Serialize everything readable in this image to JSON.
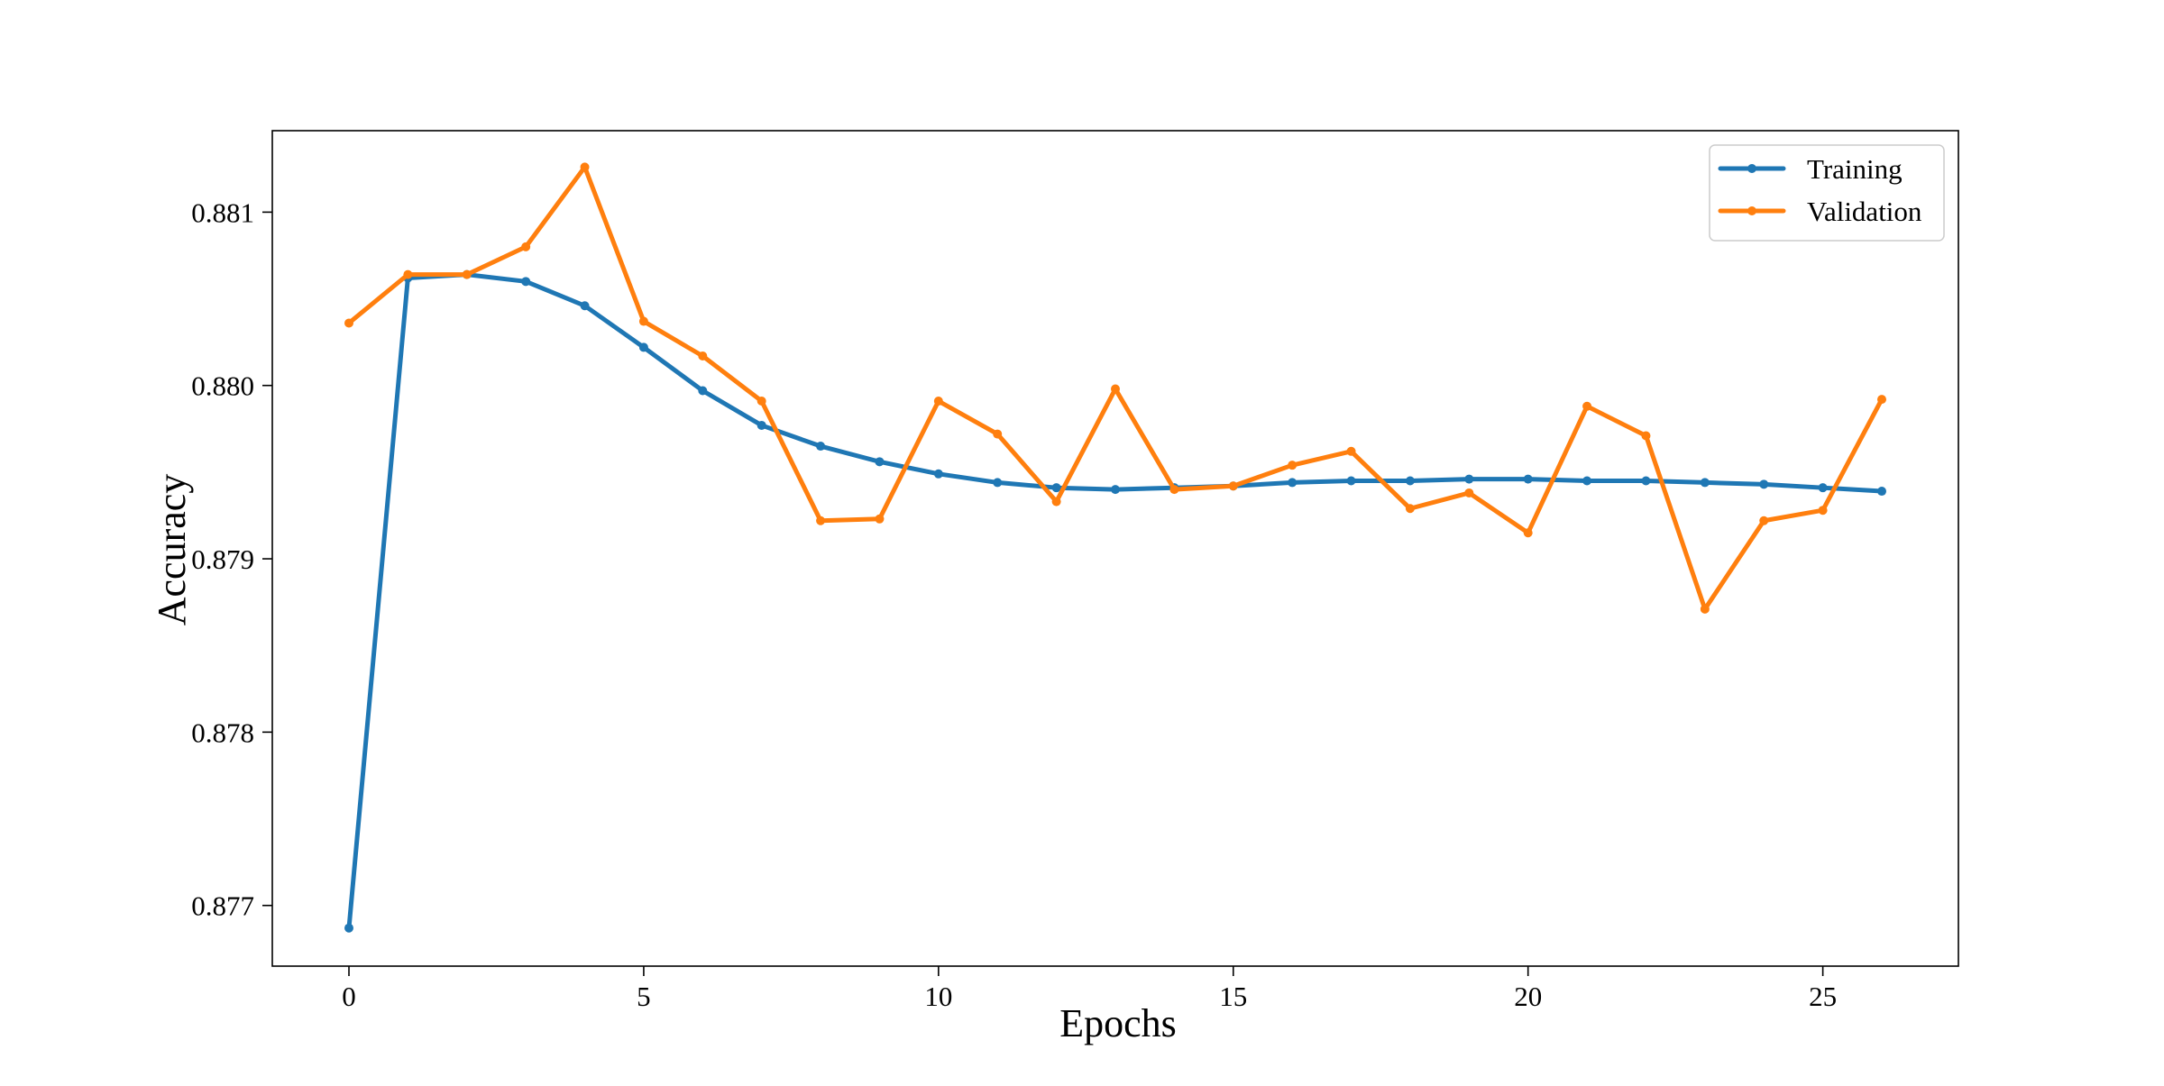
{
  "chart_data": {
    "type": "line",
    "title": "",
    "xlabel": "Epochs",
    "ylabel": "Accuracy",
    "xlim": [
      -1.3,
      27.3
    ],
    "ylim": [
      0.87665,
      0.88147
    ],
    "xticks": [
      0,
      5,
      10,
      15,
      20,
      25
    ],
    "xtick_labels": [
      "0",
      "5",
      "10",
      "15",
      "20",
      "25"
    ],
    "yticks": [
      0.877,
      0.878,
      0.879,
      0.88,
      0.881
    ],
    "ytick_labels": [
      "0.877",
      "0.878",
      "0.879",
      "0.880",
      "0.881"
    ],
    "grid": false,
    "legend_position": "top-right",
    "x": [
      0,
      1,
      2,
      3,
      4,
      5,
      6,
      7,
      8,
      9,
      10,
      11,
      12,
      13,
      14,
      15,
      16,
      17,
      18,
      19,
      20,
      21,
      22,
      23,
      24,
      25,
      26
    ],
    "series": [
      {
        "name": "Training",
        "color": "#1f77b4",
        "values": [
          0.87687,
          0.88062,
          0.88064,
          0.8806,
          0.88046,
          0.88022,
          0.87997,
          0.87977,
          0.87965,
          0.87956,
          0.87949,
          0.87944,
          0.87941,
          0.8794,
          0.87941,
          0.87942,
          0.87944,
          0.87945,
          0.87945,
          0.87946,
          0.87946,
          0.87945,
          0.87945,
          0.87944,
          0.87943,
          0.87941,
          0.87939
        ]
      },
      {
        "name": "Validation",
        "color": "#ff7f0e",
        "values": [
          0.88036,
          0.88064,
          0.88064,
          0.8808,
          0.88126,
          0.88037,
          0.88017,
          0.87991,
          0.87922,
          0.87923,
          0.87991,
          0.87972,
          0.87933,
          0.87998,
          0.8794,
          0.87942,
          0.87954,
          0.87962,
          0.87929,
          0.87938,
          0.87915,
          0.87988,
          0.87971,
          0.87871,
          0.87922,
          0.87928,
          0.87992
        ]
      }
    ]
  }
}
